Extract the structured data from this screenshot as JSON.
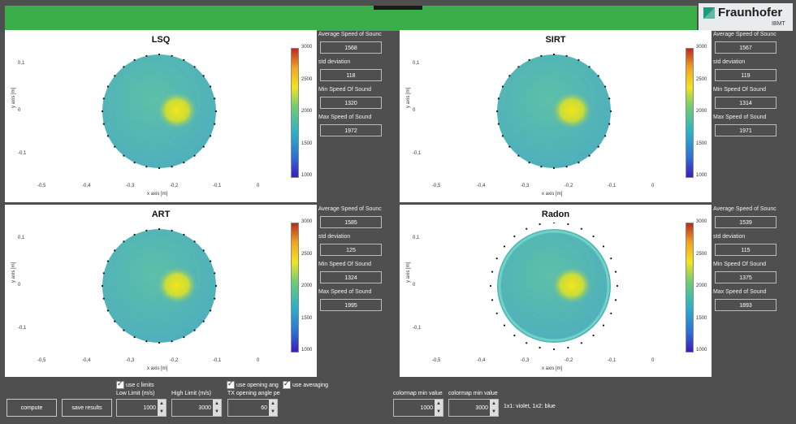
{
  "branding": {
    "name": "Fraunhofer",
    "sub": "IBMT"
  },
  "colorbar_ticks": [
    "3000",
    "2500",
    "2000",
    "1500",
    "1000"
  ],
  "y_ticks": [
    "0,1",
    "0",
    "-0,1"
  ],
  "x_ticks": [
    "-0,5",
    "-0,4",
    "-0,3",
    "-0,2",
    "-0,1",
    "0"
  ],
  "axis_labels": {
    "y": "y axis [m]",
    "x": "x axis [m]"
  },
  "stat_labels": {
    "avg": "Average Speed of Sounc",
    "std": "std deviation",
    "min": "Min Speed Of Sound",
    "max": "Max Speed of Sound"
  },
  "panels": [
    {
      "title": "LSQ",
      "avg": "1568",
      "std": "118",
      "min": "1320",
      "max": "1972"
    },
    {
      "title": "SIRT",
      "avg": "1567",
      "std": "119",
      "min": "1314",
      "max": "1971"
    },
    {
      "title": "ART",
      "avg": "1585",
      "std": "125",
      "min": "1324",
      "max": "1995"
    },
    {
      "title": "Radon",
      "avg": "1539",
      "std": "115",
      "min": "1375",
      "max": "1893"
    }
  ],
  "controls": {
    "compute": "compute",
    "save": "save results",
    "use_c_limits": "use c limits",
    "use_opening_angle": "use opening ang",
    "use_averaging": "use averaging",
    "low_limit_label": "Low Limit (m/s)",
    "low_limit_value": "1000",
    "high_limit_label": "High Limit (m/s)",
    "high_limit_value": "3000",
    "opening_label": "TX opening angle pe",
    "opening_value": "60",
    "cmap_min_label": "colormap min value",
    "cmap_min_value": "1000",
    "cmap_max_label": "colormap min value",
    "cmap_max_value": "3000",
    "tx_note": "1x1: violet, 1x2: blue"
  },
  "colors": {
    "header": "#3aae48",
    "background": "#4f4f4f",
    "map_base": "#52b7b2",
    "hotspot": "#e8e21a"
  }
}
